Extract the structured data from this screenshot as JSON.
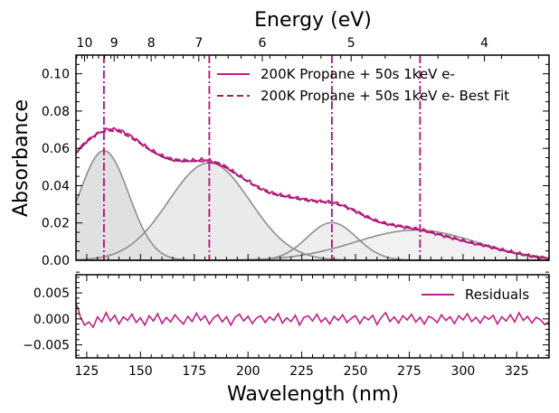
{
  "chart_data": [
    {
      "type": "line",
      "panel": "main",
      "xlabel": "",
      "ylabel": "Absorbance",
      "top_xlabel": "Energy (eV)",
      "xlim": [
        120,
        340
      ],
      "ylim": [
        0.0,
        0.11
      ],
      "yticks": [
        0.0,
        0.02,
        0.04,
        0.06,
        0.08,
        0.1
      ],
      "ytick_labels": [
        "0.00",
        "0.02",
        "0.04",
        "0.06",
        "0.08",
        "0.10"
      ],
      "top_ticks_ev": [
        10,
        9,
        8,
        7,
        6,
        5,
        4
      ],
      "top_tick_labels": [
        "10",
        "9",
        "8",
        "7",
        "6",
        "5",
        "4"
      ],
      "legend_position": "top-right",
      "series": [
        {
          "name": "200K Propane + 50s 1keV e-",
          "style": "solid",
          "color": "#c41c84",
          "x": [
            120,
            125,
            130,
            135,
            140,
            145,
            150,
            155,
            160,
            165,
            170,
            175,
            180,
            185,
            190,
            195,
            200,
            205,
            210,
            215,
            220,
            225,
            230,
            235,
            240,
            245,
            250,
            255,
            260,
            265,
            270,
            275,
            280,
            285,
            290,
            295,
            300,
            305,
            310,
            315,
            320,
            325,
            330,
            335,
            340
          ],
          "y": [
            0.058,
            0.064,
            0.068,
            0.0705,
            0.07,
            0.067,
            0.063,
            0.059,
            0.056,
            0.054,
            0.0535,
            0.0535,
            0.054,
            0.0525,
            0.05,
            0.046,
            0.0425,
            0.039,
            0.0365,
            0.035,
            0.034,
            0.033,
            0.032,
            0.0315,
            0.031,
            0.029,
            0.0265,
            0.0235,
            0.021,
            0.0195,
            0.0185,
            0.0175,
            0.0165,
            0.015,
            0.0135,
            0.012,
            0.0105,
            0.009,
            0.008,
            0.0065,
            0.005,
            0.0038,
            0.0026,
            0.0016,
            0.001
          ]
        },
        {
          "name": "200K Propane + 50s 1keV e- Best Fit",
          "style": "dashed",
          "color": "#9e1d6e",
          "x": [
            120,
            125,
            130,
            135,
            140,
            145,
            150,
            155,
            160,
            165,
            170,
            175,
            180,
            185,
            190,
            195,
            200,
            205,
            210,
            215,
            220,
            225,
            230,
            235,
            240,
            245,
            250,
            255,
            260,
            265,
            270,
            275,
            280,
            285,
            290,
            295,
            300,
            305,
            310,
            315,
            320,
            325,
            330,
            335,
            340
          ],
          "y": [
            0.0575,
            0.0635,
            0.068,
            0.0695,
            0.069,
            0.066,
            0.0625,
            0.0585,
            0.0555,
            0.0535,
            0.053,
            0.053,
            0.053,
            0.052,
            0.0495,
            0.0455,
            0.042,
            0.0385,
            0.036,
            0.0345,
            0.0335,
            0.0325,
            0.0318,
            0.0312,
            0.0305,
            0.0288,
            0.0262,
            0.0232,
            0.0208,
            0.0193,
            0.0183,
            0.0173,
            0.0163,
            0.0149,
            0.0134,
            0.0119,
            0.0104,
            0.0089,
            0.0079,
            0.0064,
            0.0049,
            0.0037,
            0.0025,
            0.0015,
            0.001
          ]
        }
      ],
      "components": [
        {
          "center": 133,
          "amplitude": 0.0588,
          "sigma": 11.5,
          "fill": "#d6d6d6"
        },
        {
          "center": 182,
          "amplitude": 0.0523,
          "sigma": 19.0,
          "fill": "#e3e3e3"
        },
        {
          "center": 239,
          "amplitude": 0.0202,
          "sigma": 11.5,
          "fill": "#e8e8e8"
        },
        {
          "center": 278,
          "amplitude": 0.0162,
          "sigma": 28.0,
          "fill": "#ececec"
        }
      ],
      "vlines": [
        133,
        182,
        239,
        280
      ],
      "vline_color": "#b0107a",
      "component_line_color": "#8e8e8e"
    },
    {
      "type": "line",
      "panel": "residuals",
      "xlabel": "Wavelength (nm)",
      "ylabel": "",
      "xlim": [
        120,
        340
      ],
      "ylim": [
        -0.0075,
        0.0085
      ],
      "xticks": [
        125,
        150,
        175,
        200,
        225,
        250,
        275,
        300,
        325
      ],
      "xtick_labels": [
        "125",
        "150",
        "175",
        "200",
        "225",
        "250",
        "275",
        "300",
        "325"
      ],
      "yticks": [
        -0.005,
        0.0,
        0.005
      ],
      "ytick_labels": [
        "−0.005",
        "0.000",
        "0.005"
      ],
      "legend_position": "top-right",
      "series": [
        {
          "name": "Residuals",
          "color": "#c41c84",
          "x": [
            120,
            121,
            122,
            124,
            126,
            128,
            130,
            132,
            134,
            136,
            138,
            140,
            142,
            144,
            146,
            148,
            150,
            152,
            154,
            156,
            158,
            160,
            162,
            164,
            166,
            168,
            170,
            172,
            174,
            176,
            178,
            180,
            182,
            184,
            186,
            188,
            190,
            192,
            194,
            196,
            198,
            200,
            202,
            204,
            206,
            208,
            210,
            212,
            214,
            216,
            218,
            220,
            222,
            224,
            226,
            228,
            230,
            232,
            234,
            236,
            238,
            240,
            242,
            244,
            246,
            248,
            250,
            252,
            254,
            256,
            258,
            260,
            262,
            264,
            266,
            268,
            270,
            272,
            274,
            276,
            278,
            280,
            282,
            284,
            286,
            288,
            290,
            292,
            294,
            296,
            298,
            300,
            302,
            304,
            306,
            308,
            310,
            312,
            314,
            316,
            318,
            320,
            322,
            324,
            326,
            328,
            330,
            332,
            334,
            336,
            338,
            340
          ],
          "y": [
            0.0029,
            0.0019,
            0.0004,
            -0.0012,
            -0.0006,
            -0.0016,
            0.0004,
            -0.0006,
            0.0012,
            -0.0004,
            0.0007,
            -0.001,
            0.0004,
            -0.0003,
            0.0009,
            -0.0007,
            0.0002,
            -0.0012,
            0.0006,
            -0.0004,
            0.001,
            -0.0009,
            0.0003,
            -0.0006,
            0.0008,
            -0.0002,
            -0.001,
            0.0005,
            -0.0005,
            0.0011,
            -0.0003,
            0.0006,
            -0.001,
            0.0002,
            0.0008,
            -0.0006,
            0.0004,
            -0.0012,
            0.0003,
            0.0009,
            -0.0004,
            0.0005,
            -0.0009,
            0.0002,
            0.0006,
            -0.0007,
            0.0004,
            -0.0003,
            0.001,
            -0.0008,
            0.0002,
            -0.0005,
            0.0007,
            -0.0012,
            0.0003,
            0.0006,
            -0.0004,
            0.0009,
            -0.0006,
            0.0002,
            -0.001,
            0.0005,
            -0.0003,
            0.0008,
            -0.0007,
            0.0001,
            0.0006,
            -0.0009,
            0.0004,
            -0.0002,
            0.0007,
            -0.0011,
            0.0003,
            0.0012,
            -0.0005,
            0.0004,
            -0.0008,
            0.0006,
            -0.0002,
            0.0009,
            -0.0006,
            0.0003,
            -0.001,
            0.0005,
            0.0001,
            -0.0007,
            0.0008,
            -0.0003,
            0.0004,
            -0.0009,
            0.0006,
            -0.0002,
            0.001,
            -0.0005,
            0.0003,
            -0.0008,
            0.0005,
            -0.0001,
            0.0007,
            -0.001,
            0.0004,
            -0.0004,
            0.0008,
            -0.0006,
            0.0012,
            -0.0003,
            0.0005,
            -0.0008,
            0.0003,
            -0.0002,
            -0.0011,
            -0.0006
          ]
        }
      ]
    }
  ]
}
